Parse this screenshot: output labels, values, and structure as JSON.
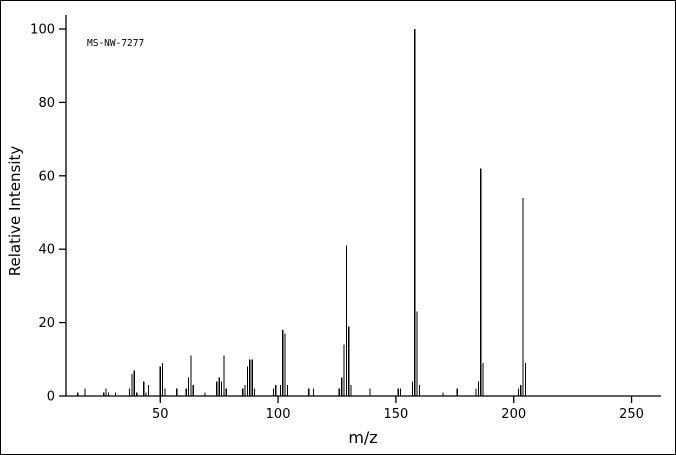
{
  "colors": {
    "line": "#000000",
    "background": "#ffffff"
  },
  "chart_data": {
    "type": "bar",
    "subtype": "mass-spectrum-stick-plot",
    "title": "",
    "annotation": "MS-NW-7277",
    "xlabel": "m/z",
    "ylabel": "Relative Intensity",
    "xlim": [
      10,
      262.5
    ],
    "ylim": [
      0,
      100
    ],
    "x_ticks": [
      50,
      100,
      150,
      200,
      250
    ],
    "y_ticks": [
      0,
      20,
      40,
      60,
      80,
      100
    ],
    "grid": false,
    "legend": false,
    "peaks": [
      [
        15,
        1
      ],
      [
        18,
        2
      ],
      [
        26,
        1
      ],
      [
        27,
        2
      ],
      [
        28,
        1
      ],
      [
        31,
        1
      ],
      [
        37,
        2
      ],
      [
        38,
        6
      ],
      [
        39,
        7
      ],
      [
        40,
        1
      ],
      [
        43,
        4
      ],
      [
        44,
        1
      ],
      [
        45,
        3
      ],
      [
        50,
        8
      ],
      [
        51,
        9
      ],
      [
        52,
        2
      ],
      [
        57,
        2
      ],
      [
        61,
        2
      ],
      [
        62,
        5
      ],
      [
        63,
        11
      ],
      [
        64,
        3
      ],
      [
        69,
        1
      ],
      [
        74,
        4
      ],
      [
        75,
        5
      ],
      [
        76,
        4
      ],
      [
        77,
        11
      ],
      [
        78,
        2
      ],
      [
        85,
        2
      ],
      [
        86,
        3
      ],
      [
        87,
        8
      ],
      [
        88,
        10
      ],
      [
        89,
        10
      ],
      [
        90,
        2
      ],
      [
        98,
        2
      ],
      [
        99,
        3
      ],
      [
        101,
        3
      ],
      [
        102,
        18
      ],
      [
        103,
        17
      ],
      [
        104,
        3
      ],
      [
        113,
        2
      ],
      [
        115,
        2
      ],
      [
        126,
        2
      ],
      [
        127,
        5
      ],
      [
        128,
        14
      ],
      [
        129,
        41
      ],
      [
        130,
        19
      ],
      [
        131,
        3
      ],
      [
        139,
        2
      ],
      [
        151,
        2
      ],
      [
        152,
        2
      ],
      [
        157,
        4
      ],
      [
        158,
        100
      ],
      [
        159,
        23
      ],
      [
        160,
        3
      ],
      [
        170,
        1
      ],
      [
        176,
        2
      ],
      [
        184,
        2
      ],
      [
        185,
        4
      ],
      [
        186,
        62
      ],
      [
        187,
        9
      ],
      [
        202,
        2
      ],
      [
        203,
        3
      ],
      [
        204,
        54
      ],
      [
        205,
        9
      ]
    ]
  }
}
